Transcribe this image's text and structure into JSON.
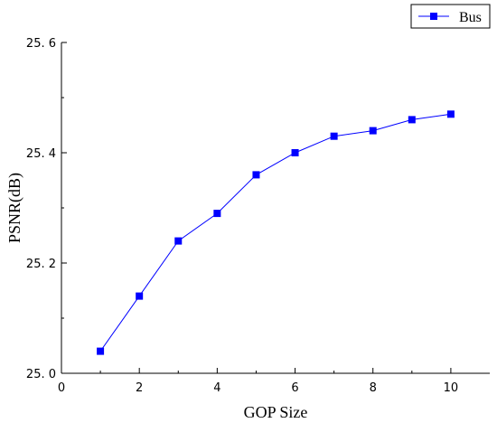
{
  "chart_data": {
    "type": "line",
    "xlabel": "GOP Size",
    "ylabel": "PSNR(dB)",
    "xlim": [
      0,
      11
    ],
    "ylim": [
      25.0,
      25.6
    ],
    "x_ticks": [
      0,
      2,
      4,
      6,
      8,
      10
    ],
    "x_tick_labels": [
      "0",
      "2",
      "4",
      "6",
      "8",
      "10"
    ],
    "y_ticks": [
      25.0,
      25.2,
      25.4,
      25.6
    ],
    "y_tick_labels": [
      "25. 0",
      "25. 2",
      "25. 4",
      "25. 6"
    ],
    "grid": false,
    "legend_position": "top-right",
    "series": [
      {
        "name": "Bus",
        "color": "#0000ff",
        "marker": "square",
        "x": [
          1,
          2,
          3,
          4,
          5,
          6,
          7,
          8,
          9,
          10
        ],
        "y": [
          25.04,
          25.14,
          25.24,
          25.29,
          25.36,
          25.4,
          25.43,
          25.44,
          25.46,
          25.47
        ]
      }
    ]
  }
}
